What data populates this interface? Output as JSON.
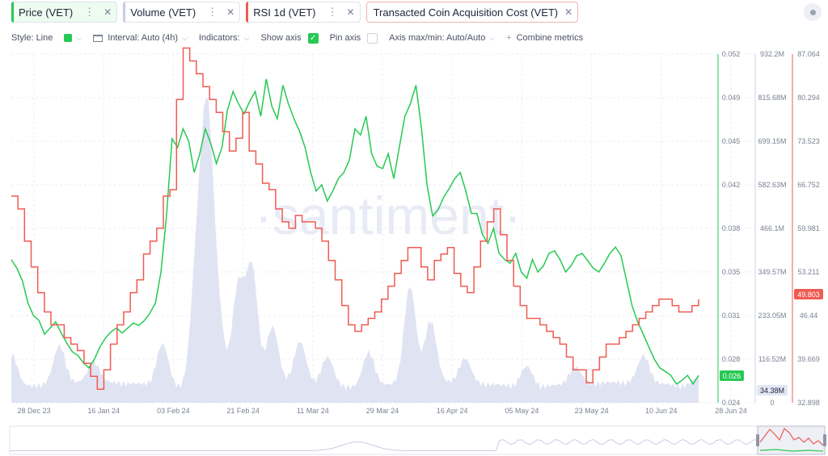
{
  "tabs": [
    {
      "label": "Price (VET)",
      "color": "#26c953",
      "selected": true
    },
    {
      "label": "Volume (VET)",
      "color": "#c7cce8",
      "selected": false
    },
    {
      "label": "RSI 1d (VET)",
      "color": "#ef5b52",
      "selected": false
    },
    {
      "label": "Transacted Coin Acquisition Cost (VET)",
      "color": "#ef5b52",
      "selected": false
    }
  ],
  "toolbar": {
    "style_label": "Style: Line",
    "interval_label": "Interval: Auto (4h)",
    "indicators_label": "Indicators:",
    "show_axis_label": "Show axis",
    "pin_axis_label": "Pin axis",
    "axis_mode_label": "Axis max/min: Auto/Auto",
    "combine_label": "Combine metrics"
  },
  "watermark": "·santiment·",
  "chart_data": {
    "type": "line",
    "x_ticks": [
      "28 Dec 23",
      "16 Jan 24",
      "03 Feb 24",
      "21 Feb 24",
      "11 Mar 24",
      "29 Mar 24",
      "16 Apr 24",
      "05 May 24",
      "23 May 24",
      "10 Jun 24",
      "28 Jun 24"
    ],
    "axes": {
      "price": {
        "ticks": [
          "0.052",
          "0.049",
          "0.045",
          "0.042",
          "0.038",
          "0.035",
          "0.031",
          "0.028",
          "0.024"
        ],
        "ylim": [
          0.024,
          0.052
        ],
        "current": "0.026",
        "color": "#26c953"
      },
      "volume": {
        "ticks": [
          "932.2M",
          "815.68M",
          "699.15M",
          "582.63M",
          "466.1M",
          "349.57M",
          "233.05M",
          "116.52M",
          "0"
        ],
        "ylim": [
          0,
          932200000
        ],
        "current": "34.38M",
        "color": "#c7cce8"
      },
      "rsi": {
        "ticks": [
          "87.064",
          "80.294",
          "73.523",
          "66.752",
          "59.981",
          "53.211",
          "46.44",
          "39.669",
          "32.898"
        ],
        "ylim": [
          32.898,
          87.064
        ],
        "current": "49.803",
        "color": "#ef5b52"
      }
    },
    "series": [
      {
        "name": "Price (VET)",
        "axis": "price",
        "color": "#26c953",
        "values": [
          0.0355,
          0.0348,
          0.0338,
          0.032,
          0.031,
          0.0306,
          0.0295,
          0.03,
          0.0305,
          0.0296,
          0.0288,
          0.0281,
          0.0278,
          0.0272,
          0.0268,
          0.0275,
          0.0285,
          0.0292,
          0.0297,
          0.03,
          0.0296,
          0.03,
          0.0304,
          0.0302,
          0.0306,
          0.0312,
          0.032,
          0.0345,
          0.039,
          0.0452,
          0.0445,
          0.046,
          0.045,
          0.0425,
          0.044,
          0.046,
          0.0448,
          0.0432,
          0.0445,
          0.0475,
          0.049,
          0.048,
          0.0472,
          0.0482,
          0.049,
          0.047,
          0.05,
          0.0478,
          0.0468,
          0.0495,
          0.048,
          0.0468,
          0.0458,
          0.0445,
          0.0425,
          0.041,
          0.0415,
          0.0402,
          0.041,
          0.042,
          0.0425,
          0.0435,
          0.046,
          0.0455,
          0.047,
          0.044,
          0.043,
          0.0428,
          0.044,
          0.042,
          0.0445,
          0.047,
          0.048,
          0.0495,
          0.046,
          0.0415,
          0.039,
          0.0395,
          0.0405,
          0.0412,
          0.042,
          0.0425,
          0.041,
          0.0392,
          0.0392,
          0.0375,
          0.0368,
          0.038,
          0.036,
          0.0355,
          0.0352,
          0.036,
          0.0345,
          0.034,
          0.0355,
          0.0345,
          0.035,
          0.036,
          0.0362,
          0.0355,
          0.0345,
          0.035,
          0.0358,
          0.036,
          0.0354,
          0.0348,
          0.0345,
          0.0352,
          0.036,
          0.0365,
          0.0358,
          0.0338,
          0.0318,
          0.0305,
          0.0295,
          0.0285,
          0.0275,
          0.0268,
          0.0265,
          0.0262,
          0.0255,
          0.0258,
          0.0262,
          0.0255,
          0.0262
        ]
      },
      {
        "name": "RSI 1d (VET)",
        "axis": "rsi",
        "color": "#ef5b52",
        "values": [
          65,
          63,
          58,
          54,
          50,
          47,
          45,
          45,
          43,
          42,
          41,
          39,
          37,
          35,
          38,
          42,
          45,
          47,
          50,
          52,
          56,
          58,
          60,
          65,
          66,
          80,
          88,
          86,
          84,
          82,
          80,
          78,
          75,
          72,
          74,
          78,
          72,
          70,
          67,
          66,
          63,
          61,
          60,
          62,
          61,
          61,
          60,
          58,
          55,
          52,
          48,
          45,
          44,
          45,
          46,
          47,
          49,
          51,
          53,
          55,
          57,
          57,
          54,
          52,
          55,
          56,
          57,
          53,
          51,
          50,
          54,
          58,
          61,
          63,
          59,
          55,
          51,
          48,
          46,
          46,
          45,
          44,
          43,
          42,
          40,
          38,
          38,
          36,
          38,
          40,
          42,
          42,
          43,
          44,
          45,
          46,
          47,
          48,
          49,
          49,
          48,
          47,
          47,
          48,
          49
        ]
      }
    ]
  }
}
